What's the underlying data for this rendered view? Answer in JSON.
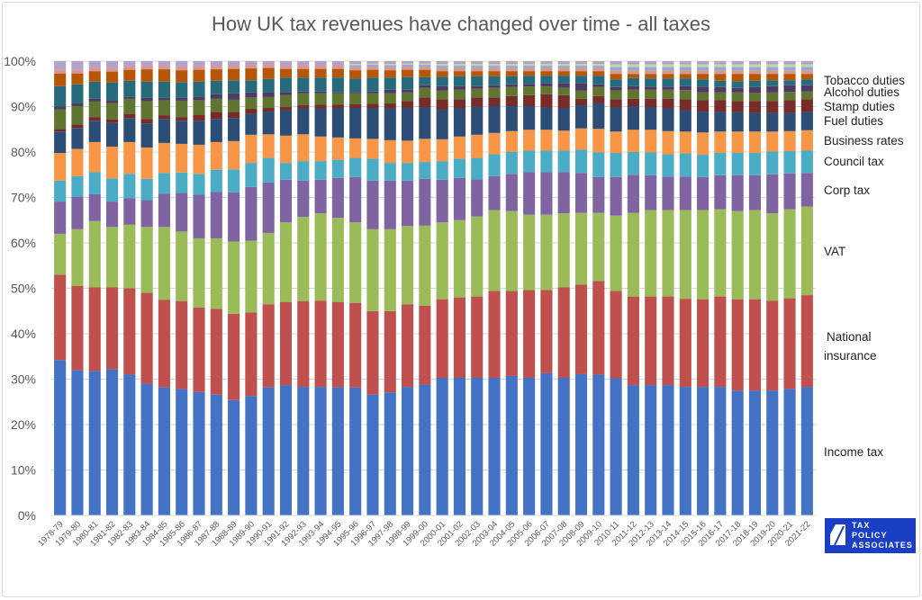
{
  "chart_data": {
    "type": "bar",
    "stacked": "percent",
    "title": "How UK tax revenues have changed over time - all taxes",
    "xlabel": "",
    "ylabel": "",
    "ylim": [
      0,
      100
    ],
    "yticks": [
      "0%",
      "10%",
      "20%",
      "30%",
      "40%",
      "50%",
      "60%",
      "70%",
      "80%",
      "90%",
      "100%"
    ],
    "grid": true,
    "legend": "right-side labels",
    "categories": [
      "1978-79",
      "1979-80",
      "1980-81",
      "1981-82",
      "1982-83",
      "1983-84",
      "1984-85",
      "1985-86",
      "1986-87",
      "1987-88",
      "1988-89",
      "1989-90",
      "1990-91",
      "1991-92",
      "1992-93",
      "1993-94",
      "1994-95",
      "1995-96",
      "1996-97",
      "1997-98",
      "1998-99",
      "1999-00",
      "2000-01",
      "2001-02",
      "2002-03",
      "2003-04",
      "2004-05",
      "2005-06",
      "2006-07",
      "2007-08",
      "2008-09",
      "2009-10",
      "2010-11",
      "2011-12",
      "2012-13",
      "2013-14",
      "2014-15",
      "2015-16",
      "2016-17",
      "2017-18",
      "2018-19",
      "2019-20",
      "2020-21",
      "2021-22"
    ],
    "series": [
      {
        "name": "Income tax",
        "color": "#4472C4",
        "values": [
          34.2,
          32.0,
          31.8,
          32.2,
          31.0,
          29.0,
          28.2,
          27.8,
          27.2,
          26.6,
          25.4,
          26.3,
          28.2,
          28.7,
          28.3,
          28.3,
          28.2,
          28.2,
          26.6,
          27.1,
          28.3,
          28.8,
          30.3,
          30.3,
          30.3,
          30.3,
          30.7,
          30.3,
          31.3,
          30.3,
          31.1,
          31.0,
          30.2,
          28.7,
          28.7,
          28.7,
          28.3,
          28.3,
          28.3,
          27.5,
          27.5,
          27.5,
          27.8,
          28.3
        ]
      },
      {
        "name": "National insurance",
        "color": "#C0504D",
        "values": [
          18.8,
          18.5,
          18.4,
          18.0,
          19.0,
          20.0,
          19.3,
          19.4,
          18.6,
          18.9,
          19.0,
          18.4,
          18.3,
          18.3,
          18.9,
          19.0,
          18.8,
          18.6,
          18.4,
          17.9,
          18.2,
          17.4,
          17.3,
          17.7,
          17.9,
          19.1,
          18.7,
          19.3,
          18.3,
          19.9,
          19.7,
          20.6,
          19.2,
          19.5,
          19.5,
          19.5,
          19.4,
          19.3,
          19.9,
          20.1,
          20.1,
          19.8,
          20.0,
          20.2
        ]
      },
      {
        "name": "VAT",
        "color": "#9BBB59",
        "values": [
          9.0,
          12.5,
          14.6,
          13.3,
          14.0,
          14.5,
          16.0,
          15.3,
          15.2,
          15.5,
          15.9,
          15.8,
          15.7,
          17.5,
          18.5,
          19.2,
          18.5,
          17.7,
          18.0,
          18.0,
          17.2,
          17.6,
          16.9,
          17.0,
          17.6,
          17.8,
          17.6,
          16.6,
          16.6,
          16.3,
          15.8,
          15.0,
          16.6,
          18.4,
          19.0,
          19.0,
          19.5,
          19.6,
          19.2,
          19.4,
          19.6,
          19.2,
          19.6,
          19.5
        ]
      },
      {
        "name": "Corp tax",
        "color": "#8064A2",
        "values": [
          7.1,
          7.1,
          5.9,
          5.6,
          5.8,
          5.9,
          7.3,
          8.5,
          9.6,
          10.2,
          10.8,
          11.8,
          11.1,
          9.4,
          8.0,
          7.4,
          8.8,
          10.0,
          10.7,
          10.7,
          10.0,
          10.3,
          9.4,
          9.3,
          8.2,
          7.5,
          8.2,
          9.4,
          9.4,
          9.1,
          8.8,
          7.9,
          8.5,
          8.4,
          7.7,
          7.4,
          7.4,
          7.3,
          7.5,
          7.9,
          7.7,
          8.6,
          7.9,
          7.4
        ]
      },
      {
        "name": "Council tax",
        "color": "#4BACC6",
        "values": [
          4.6,
          4.6,
          4.9,
          5.1,
          5.4,
          4.7,
          4.6,
          4.5,
          4.6,
          4.9,
          5.1,
          5.3,
          5.4,
          3.7,
          4.3,
          4.1,
          4.0,
          4.2,
          4.8,
          3.9,
          3.9,
          3.7,
          4.1,
          4.2,
          4.7,
          4.8,
          4.8,
          4.7,
          4.7,
          4.7,
          5.1,
          5.4,
          5.3,
          5.0,
          5.0,
          4.9,
          5.1,
          4.9,
          4.9,
          4.9,
          4.9,
          5.0,
          4.9,
          4.9
        ]
      },
      {
        "name": "Business rates",
        "color": "#F79646",
        "values": [
          6.1,
          6.0,
          6.6,
          7.0,
          7.0,
          6.9,
          6.6,
          6.3,
          6.4,
          6.1,
          6.2,
          6.2,
          5.2,
          6.0,
          5.9,
          5.4,
          4.9,
          4.3,
          4.4,
          5.0,
          4.9,
          5.1,
          4.8,
          4.9,
          5.1,
          4.7,
          4.6,
          4.6,
          4.6,
          4.4,
          4.7,
          5.2,
          4.7,
          4.9,
          5.0,
          5.1,
          4.8,
          4.9,
          4.7,
          4.7,
          4.7,
          4.4,
          4.4,
          4.5
        ]
      },
      {
        "name": "Fuel duties",
        "color": "#2C4D75",
        "values": [
          4.7,
          4.6,
          4.7,
          5.2,
          5.3,
          5.3,
          5.3,
          5.1,
          5.3,
          5.1,
          5.1,
          4.6,
          5.0,
          5.6,
          5.7,
          6.2,
          6.4,
          6.7,
          6.8,
          7.0,
          7.2,
          7.0,
          6.5,
          6.3,
          6.2,
          5.9,
          5.5,
          5.2,
          4.9,
          4.9,
          5.1,
          5.6,
          5.3,
          5.2,
          5.0,
          5.0,
          4.7,
          4.6,
          4.4,
          4.3,
          4.1,
          4.1,
          4.0,
          4.0
        ]
      },
      {
        "name": "Stamp duties",
        "color": "#772C2A",
        "values": [
          0.6,
          0.8,
          0.8,
          0.8,
          0.9,
          1.0,
          0.8,
          0.8,
          1.3,
          1.5,
          1.3,
          1.1,
          0.8,
          0.7,
          0.7,
          0.8,
          0.8,
          0.8,
          0.9,
          1.1,
          1.5,
          2.1,
          2.3,
          1.9,
          2.0,
          1.9,
          2.2,
          2.4,
          2.9,
          2.9,
          1.4,
          1.6,
          1.8,
          1.6,
          1.8,
          2.1,
          2.4,
          2.5,
          2.5,
          2.4,
          2.6,
          2.6,
          2.8,
          2.8
        ]
      },
      {
        "name": "Alcohol duties",
        "color": "#5F7530",
        "values": [
          4.3,
          4.0,
          3.4,
          3.6,
          3.3,
          3.9,
          3.3,
          3.6,
          3.2,
          2.9,
          2.7,
          2.5,
          2.4,
          2.6,
          2.6,
          2.5,
          2.5,
          2.4,
          2.3,
          2.2,
          1.9,
          2.1,
          1.9,
          2.1,
          1.9,
          2.1,
          2.0,
          1.9,
          1.7,
          1.6,
          1.8,
          2.0,
          1.9,
          2.0,
          2.0,
          2.0,
          2.0,
          1.7,
          1.7,
          1.9,
          1.8,
          1.9,
          1.8,
          1.7
        ]
      },
      {
        "name": "Tobacco duties",
        "color": "#4D3B62",
        "values": [
          0.6,
          0.6,
          0.6,
          0.6,
          0.4,
          0.7,
          0.5,
          0.6,
          0.8,
          1.0,
          1.4,
          1.1,
          1.1,
          0.7,
          0.4,
          0.4,
          0.3,
          0.3,
          0.4,
          0.8,
          0.6,
          0.6,
          1.0,
          0.8,
          0.6,
          0.6,
          0.6,
          0.6,
          0.8,
          1.1,
          1.7,
          0.6,
          0.8,
          0.8,
          0.7,
          0.7,
          0.9,
          1.3,
          1.2,
          1.0,
          1.3,
          1.4,
          1.5,
          1.4
        ]
      },
      {
        "color": "#276A7C",
        "values": [
          4.5,
          4.2,
          3.8,
          3.9,
          3.6,
          3.6,
          3.6,
          3.5,
          3.3,
          3.0,
          2.9,
          2.7,
          2.9,
          3.2,
          3.1,
          3.1,
          3.2,
          3.0,
          3.1,
          2.7,
          2.8,
          1.8,
          2.1,
          2.2,
          2.2,
          2.0,
          1.8,
          1.8,
          1.6,
          1.6,
          1.6,
          1.9,
          1.7,
          1.8,
          1.8,
          1.8,
          1.7,
          1.6,
          1.4,
          1.5,
          1.4,
          1.3,
          1.1,
          1.3
        ]
      },
      {
        "color": "#B65708",
        "values": [
          2.8,
          2.4,
          2.3,
          2.4,
          2.4,
          2.7,
          2.7,
          2.6,
          2.6,
          2.5,
          2.5,
          2.6,
          2.4,
          1.9,
          1.9,
          1.9,
          1.9,
          1.8,
          1.7,
          1.6,
          1.6,
          1.6,
          1.2,
          1.1,
          1.1,
          1.1,
          1.1,
          1.0,
          1.0,
          1.0,
          1.0,
          1.0,
          1.2,
          0.9,
          1.0,
          1.0,
          1.0,
          1.2,
          1.5,
          1.6,
          1.5,
          1.4,
          1.4,
          1.2
        ]
      },
      {
        "color": "#D99694",
        "values": [
          0.8,
          0.8,
          0.8,
          0.8,
          0.8,
          0.8,
          0.8,
          0.8,
          0.8,
          0.8,
          0.8,
          0.8,
          0.8,
          0.8,
          0.8,
          0.8,
          0.8,
          0.7,
          0.7,
          0.7,
          0.7,
          0.7,
          0.7,
          0.7,
          0.7,
          0.7,
          0.7,
          0.7,
          0.7,
          0.7,
          0.7,
          0.7,
          0.8,
          0.8,
          0.8,
          0.8,
          0.8,
          0.8,
          0.8,
          0.8,
          0.8,
          0.8,
          0.8,
          0.8
        ]
      },
      {
        "color": "#8EA9DB",
        "values": [
          0,
          0,
          0,
          0,
          0,
          0,
          0,
          0,
          0,
          0,
          0,
          0,
          0,
          0,
          0,
          0,
          0,
          0.4,
          0.4,
          0.4,
          0.4,
          0.4,
          0.5,
          0.5,
          0.5,
          0.5,
          0.5,
          0.5,
          0.5,
          0.5,
          0.5,
          0.5,
          0.7,
          0.7,
          0.7,
          0.7,
          0.7,
          0.7,
          0.7,
          0.7,
          0.7,
          0.7,
          0.7,
          0.7
        ]
      },
      {
        "color": "#C3D69B",
        "values": [
          0,
          0,
          0,
          0,
          0,
          0,
          0,
          0,
          0,
          0,
          0,
          0,
          0,
          0,
          0,
          0,
          0,
          0.3,
          0.3,
          0.3,
          0.3,
          0.3,
          0.4,
          0.4,
          0.4,
          0.4,
          0.4,
          0.4,
          0.4,
          0.4,
          0.4,
          0.4,
          0.6,
          0.6,
          0.6,
          0.6,
          0.6,
          0.6,
          0.6,
          0.6,
          0.6,
          0.6,
          0.6,
          0.6
        ]
      },
      {
        "color": "#B3A2C7",
        "values": [
          1.9,
          1.9,
          1.4,
          1.5,
          1.1,
          1.0,
          1.0,
          1.2,
          1.1,
          1.0,
          0.9,
          0.8,
          0.7,
          0.9,
          0.9,
          0.9,
          0.9,
          0.6,
          0.5,
          0.6,
          0.5,
          0.5,
          0.6,
          0.6,
          0.6,
          0.6,
          0.6,
          0.6,
          0.6,
          0.6,
          0.6,
          0.6,
          0.7,
          0.7,
          0.7,
          0.7,
          0.7,
          0.7,
          0.7,
          0.7,
          0.7,
          0.7,
          0.7,
          0.7
        ]
      }
    ],
    "side_labels": {
      "tobacco": "Tobacco duties",
      "alcohol": "Alcohol duties",
      "stamp": "Stamp duties",
      "fuel": "Fuel duties",
      "business_rates": "Business rates",
      "council_tax": "Council tax",
      "corp_tax": "Corp tax",
      "vat": "VAT",
      "ni_line1": "National",
      "ni_line2": "insurance",
      "income_tax": "Income tax"
    }
  },
  "logo": {
    "text_line1": "TAX",
    "text_line2": "POLICY",
    "text_line3": "ASSOCIATES",
    "color": "#1a3fc4"
  }
}
